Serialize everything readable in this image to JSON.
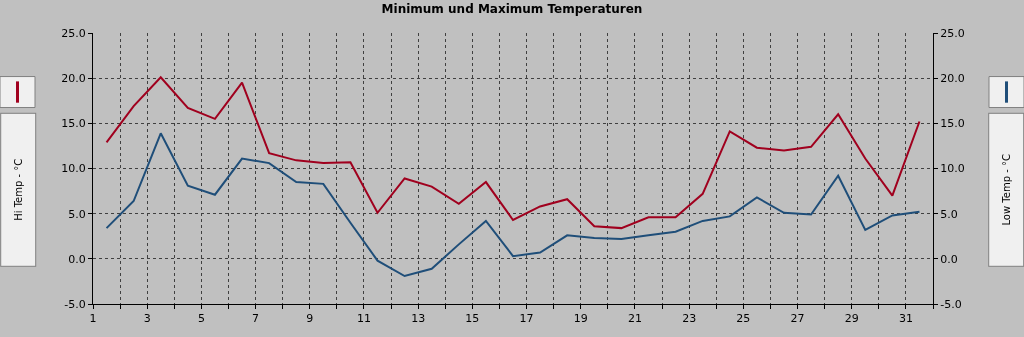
{
  "chart_data": {
    "type": "line",
    "title": "Minimum und Maximum Temperaturen",
    "ylabel": "Hi Temp - °C",
    "y2label": "Low Temp - °C",
    "x": [
      1.5,
      2.5,
      3.5,
      4.5,
      5.5,
      6.5,
      7.5,
      8.5,
      9.5,
      10.5,
      11.5,
      12.5,
      13.5,
      14.5,
      15.5,
      16.5,
      17.5,
      18.5,
      19.5,
      20.5,
      21.5,
      22.5,
      23.5,
      24.5,
      25.5,
      26.5,
      27.5,
      28.5,
      29.5,
      30.5,
      31.5
    ],
    "series": [
      {
        "color": "#a0001e",
        "values": [
          12.9,
          16.9,
          20.1,
          16.7,
          15.5,
          19.5,
          11.7,
          10.9,
          10.6,
          10.7,
          5.1,
          8.9,
          8.0,
          6.1,
          8.5,
          4.3,
          5.8,
          6.6,
          3.6,
          3.4,
          4.6,
          4.6,
          7.2,
          14.1,
          12.3,
          12.0,
          12.4,
          16.0,
          11.1,
          7.0,
          15.2
        ]
      },
      {
        "color": "#1f4e79",
        "axis": "y2",
        "values": [
          3.4,
          6.4,
          13.9,
          8.1,
          7.1,
          11.1,
          10.6,
          8.5,
          8.3,
          4.0,
          -0.2,
          -1.9,
          -1.1,
          1.6,
          4.2,
          0.3,
          0.7,
          2.6,
          2.3,
          2.2,
          2.6,
          3.0,
          4.2,
          4.7,
          6.8,
          5.1,
          4.9,
          9.2,
          3.2,
          4.8,
          5.2
        ]
      }
    ],
    "xlim": [
      1,
      32
    ],
    "xticks": [
      1,
      {
        "value": 2,
        "label": null
      },
      3,
      {
        "value": 4,
        "label": null
      },
      5,
      {
        "value": 6,
        "label": null
      },
      7,
      {
        "value": 8,
        "label": null
      },
      9,
      {
        "value": 10,
        "label": null
      },
      11,
      {
        "value": 12,
        "label": null
      },
      13,
      {
        "value": 14,
        "label": null
      },
      15,
      {
        "value": 16,
        "label": null
      },
      17,
      {
        "value": 18,
        "label": null
      },
      19,
      {
        "value": 20,
        "label": null
      },
      21,
      {
        "value": 22,
        "label": null
      },
      23,
      {
        "value": 24,
        "label": null
      },
      25,
      {
        "value": 26,
        "label": null
      },
      27,
      {
        "value": 28,
        "label": null
      },
      29,
      {
        "value": 30,
        "label": null
      },
      31,
      {
        "value": 32,
        "label": null
      }
    ],
    "ylim": [
      -5,
      25
    ],
    "yticks": [
      {
        "value": -5,
        "label": "-5.0"
      },
      {
        "value": 0,
        "label": "0.0"
      },
      {
        "value": 5,
        "label": "5.0"
      },
      {
        "value": 10,
        "label": "10.0"
      },
      {
        "value": 15,
        "label": "15.0"
      },
      {
        "value": 20,
        "label": "20.0"
      },
      {
        "value": 25,
        "label": "25.0"
      }
    ],
    "y2lim": [
      -5,
      25
    ],
    "y2ticks": [
      {
        "value": -5,
        "label": "-5.0"
      },
      {
        "value": 0,
        "label": "0.0"
      },
      {
        "value": 5,
        "label": "5.0"
      },
      {
        "value": 10,
        "label": "10.0"
      },
      {
        "value": 15,
        "label": "15.0"
      },
      {
        "value": 20,
        "label": "20.0"
      },
      {
        "value": 25,
        "label": "25.0"
      }
    ],
    "grid": true,
    "marker": "none",
    "line_style": "solid"
  }
}
